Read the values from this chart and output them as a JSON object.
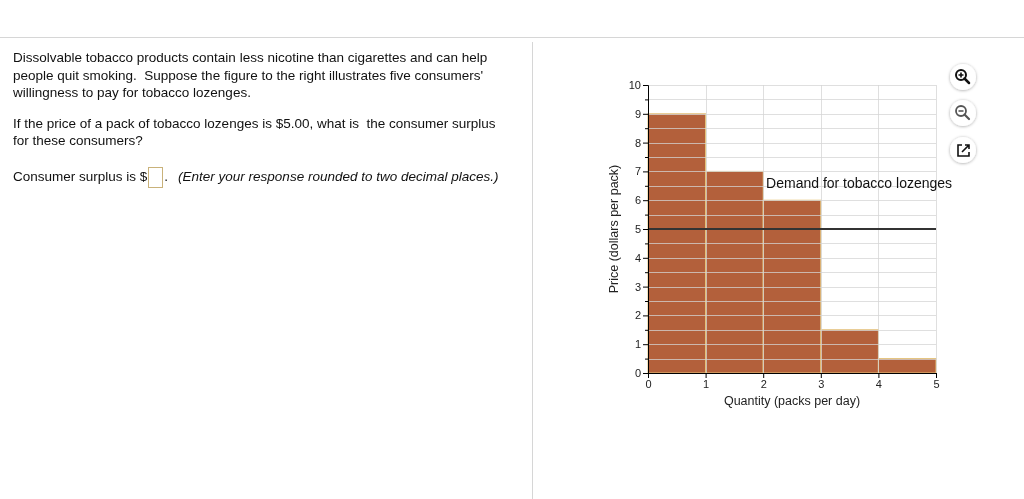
{
  "chart_data": {
    "type": "histogram",
    "bins": [
      0,
      1,
      2,
      3,
      4,
      5
    ],
    "values": [
      9,
      7,
      6,
      1.5,
      0.5
    ],
    "color": "#b3603b",
    "xlim": [
      0,
      5
    ],
    "xticks": [
      0,
      1,
      2,
      3,
      4,
      5
    ],
    "ylim": [
      0,
      10
    ],
    "yticks": [
      0,
      {
        "value": 0.5,
        "label": null
      },
      1,
      {
        "value": 1.5,
        "label": null
      },
      2,
      {
        "value": 2.5,
        "label": null
      },
      3,
      {
        "value": 3.5,
        "label": null
      },
      4,
      {
        "value": 4.5,
        "label": null
      },
      5,
      {
        "value": 5.5,
        "label": null
      },
      6,
      {
        "value": 6.5,
        "label": null
      },
      7,
      {
        "value": 7.5,
        "label": null
      },
      8,
      {
        "value": 8.5,
        "label": null
      },
      9,
      {
        "value": 9.5,
        "label": null
      },
      10
    ],
    "grid": true,
    "xlabel": "Quantity (packs per day)",
    "ylabel": "Price (dollars per pack)",
    "ref_lines": [
      {
        "axis": "y",
        "value": 5,
        "color": "#333333"
      }
    ],
    "annotations": [
      "Dissolvable tobacco products contain less nicotine than cigarettes and can help people quit smoking.  Suppose the figure to the right illustrates five consumers' willingness to pay for tobacco lozenges.",
      "If the price of a pack of tobacco lozenges is $5.00, what is  the consumer surplus for these consumers?",
      "Consumer surplus is $",
      ".",
      "(Enter your response rounded to two decimal places.)",
      {
        "text": "Demand for tobacco lozenges",
        "x": 2.05,
        "y": 6.6
      }
    ]
  }
}
